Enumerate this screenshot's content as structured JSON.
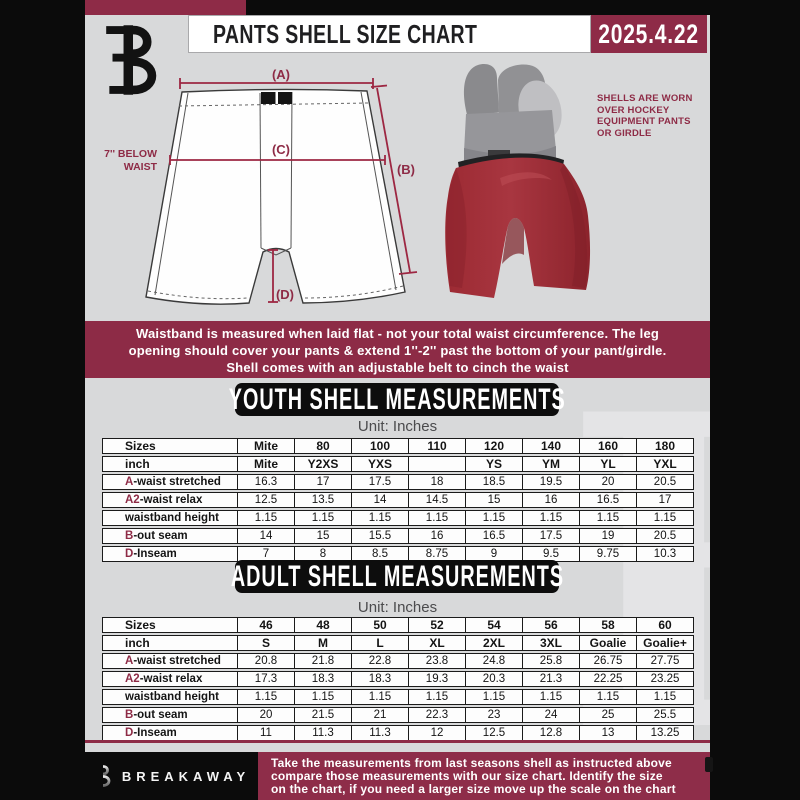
{
  "header": {
    "title": "PANTS SHELL SIZE CHART",
    "date": "2025.4.22"
  },
  "diagram": {
    "labels": {
      "a": "(A)",
      "b": "(B)",
      "c": "(C)",
      "d": "(D)"
    },
    "below_waist_line1": "7'' BELOW",
    "below_waist_line2": "WAIST"
  },
  "photo_note": "SHELLS ARE WORN\nOVER HOCKEY\nEQUIPMENT PANTS\nOR GIRDLE",
  "banner": "Waistband is measured when laid flat - not your total waist circumference. The leg\nopening should cover your pants & extend 1''-2'' past the bottom of your pant/girdle.\nShell comes with an adjustable belt to cinch the waist",
  "youth": {
    "heading": "YOUTH SHELL MEASUREMENTS",
    "unit": "Unit: Inches"
  },
  "adult": {
    "heading": "ADULT SHELL MEASUREMENTS",
    "unit": "Unit: Inches"
  },
  "footer": {
    "brand": "BREAKAWAY",
    "note": "Take the measurements from last seasons shell as instructed above\ncompare those measurements  with our size chart. Identify the size\non the chart, if you need a larger size move up the scale on the chart"
  },
  "colors": {
    "accent_maroon": "#8e2b47",
    "diagram_line": "#9d2742",
    "page_gray": "#d8d9da",
    "pill_black": "#0d0d0d",
    "pants_red": "#a32f38"
  },
  "tables": {
    "youth": {
      "rows": [
        {
          "hdr": true,
          "prefix": "",
          "label": "Sizes",
          "values": [
            "Mite",
            "80",
            "100",
            "110",
            "120",
            "140",
            "160",
            "180"
          ]
        },
        {
          "hdr": true,
          "prefix": "",
          "label": "inch",
          "values": [
            "Mite",
            "Y2XS",
            "YXS",
            "",
            "YS",
            "YM",
            "YL",
            "YXL"
          ]
        },
        {
          "hdr": false,
          "prefix": "A",
          "label": "-waist stretched",
          "values": [
            "16.3",
            "17",
            "17.5",
            "18",
            "18.5",
            "19.5",
            "20",
            "20.5"
          ]
        },
        {
          "hdr": false,
          "prefix": "A2",
          "label": "-waist relax",
          "values": [
            "12.5",
            "13.5",
            "14",
            "14.5",
            "15",
            "16",
            "16.5",
            "17"
          ]
        },
        {
          "hdr": false,
          "prefix": "",
          "label": "waistband height",
          "values": [
            "1.15",
            "1.15",
            "1.15",
            "1.15",
            "1.15",
            "1.15",
            "1.15",
            "1.15"
          ]
        },
        {
          "hdr": false,
          "prefix": "B",
          "label": "-out seam",
          "values": [
            "14",
            "15",
            "15.5",
            "16",
            "16.5",
            "17.5",
            "19",
            "20.5"
          ]
        },
        {
          "hdr": false,
          "prefix": "D",
          "label": "-Inseam",
          "values": [
            "7",
            "8",
            "8.5",
            "8.75",
            "9",
            "9.5",
            "9.75",
            "10.3"
          ]
        }
      ]
    },
    "adult": {
      "rows": [
        {
          "hdr": true,
          "prefix": "",
          "label": "Sizes",
          "values": [
            "46",
            "48",
            "50",
            "52",
            "54",
            "56",
            "58",
            "60"
          ]
        },
        {
          "hdr": true,
          "prefix": "",
          "label": "inch",
          "values": [
            "S",
            "M",
            "L",
            "XL",
            "2XL",
            "3XL",
            "Goalie",
            "Goalie+"
          ]
        },
        {
          "hdr": false,
          "prefix": "A",
          "label": "-waist stretched",
          "values": [
            "20.8",
            "21.8",
            "22.8",
            "23.8",
            "24.8",
            "25.8",
            "26.75",
            "27.75"
          ]
        },
        {
          "hdr": false,
          "prefix": "A2",
          "label": "-waist relax",
          "values": [
            "17.3",
            "18.3",
            "18.3",
            "19.3",
            "20.3",
            "21.3",
            "22.25",
            "23.25"
          ]
        },
        {
          "hdr": false,
          "prefix": "",
          "label": "waistband height",
          "values": [
            "1.15",
            "1.15",
            "1.15",
            "1.15",
            "1.15",
            "1.15",
            "1.15",
            "1.15"
          ]
        },
        {
          "hdr": false,
          "prefix": "B",
          "label": "-out seam",
          "values": [
            "20",
            "21.5",
            "21",
            "22.3",
            "23",
            "24",
            "25",
            "25.5"
          ]
        },
        {
          "hdr": false,
          "prefix": "D",
          "label": "-Inseam",
          "values": [
            "11",
            "11.3",
            "11.3",
            "12",
            "12.5",
            "12.8",
            "13",
            "13.25"
          ]
        }
      ]
    }
  }
}
